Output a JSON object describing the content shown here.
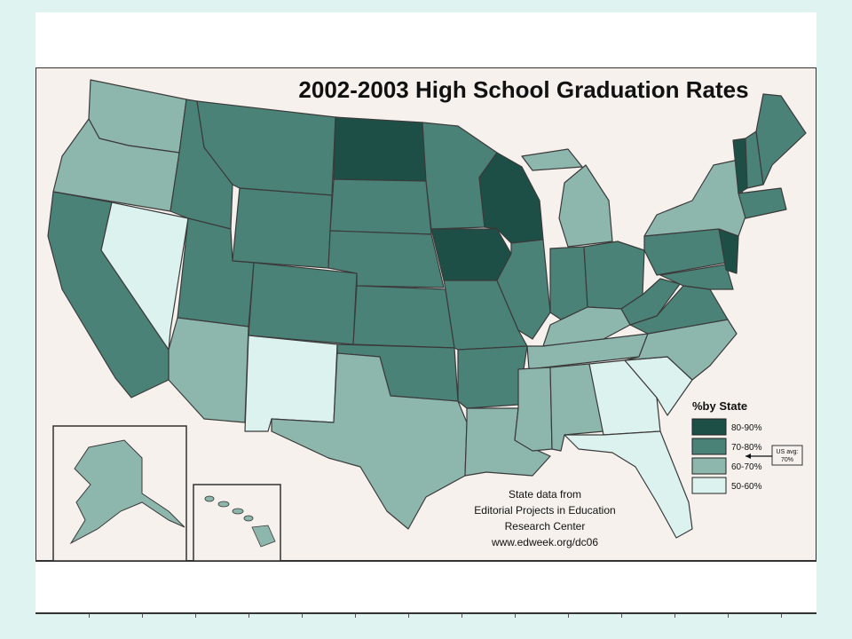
{
  "map": {
    "title": "2002-2003 High School Graduation Rates",
    "legend": {
      "title": "%by State",
      "items": [
        {
          "label": "80-90%",
          "color": "#1d4f47"
        },
        {
          "label": "70-80%",
          "color": "#4b8277"
        },
        {
          "label": "60-70%",
          "color": "#8db6ad"
        },
        {
          "label": "50-60%",
          "color": "#dcf2ef"
        }
      ],
      "callout_line1": "US avg:",
      "callout_line2": "70%"
    },
    "source": {
      "line1": "State data from",
      "line2": "Editorial Projects in Education",
      "line3": "Research Center",
      "line4": "www.edweek.org/dc06"
    },
    "colors": {
      "background": "#f6f1ec",
      "border": "#333333",
      "slide_background": "#dff3f1"
    }
  }
}
